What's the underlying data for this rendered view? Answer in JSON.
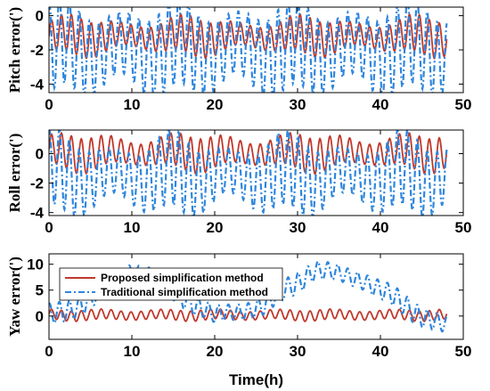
{
  "chart_data": [
    {
      "type": "line",
      "ylabel": "Pitch error(')",
      "xlim": [
        0,
        50
      ],
      "ylim": [
        -4.5,
        0.5
      ],
      "yticks": [
        0,
        -2,
        -4
      ],
      "xticks": [
        0,
        10,
        20,
        30,
        40,
        50
      ],
      "grid": false,
      "t_end": 48,
      "series": [
        {
          "key": "proposed",
          "color": "#c0392b",
          "style": "solid",
          "center": -1.2,
          "amp": [
            0.6,
            1.1
          ],
          "cycles": 40
        },
        {
          "key": "traditional",
          "color": "#2e86de",
          "style": "dashdot",
          "center": -2.0,
          "amp": [
            1.8,
            2.6
          ],
          "cycles": 40
        }
      ]
    },
    {
      "type": "line",
      "ylabel": "Roll error(')",
      "xlim": [
        0,
        50
      ],
      "ylim": [
        -4.2,
        1.6
      ],
      "yticks": [
        0,
        -2,
        -4
      ],
      "xticks": [
        0,
        10,
        20,
        30,
        40,
        50
      ],
      "grid": false,
      "t_end": 48,
      "series": [
        {
          "key": "proposed",
          "color": "#c0392b",
          "style": "solid",
          "center": 0.1,
          "amp": [
            0.7,
            1.2
          ],
          "cycles": 40
        },
        {
          "key": "traditional",
          "color": "#2e86de",
          "style": "dashdot",
          "center": -1.5,
          "amp": [
            1.5,
            2.6
          ],
          "cycles": 40
        }
      ]
    },
    {
      "type": "line",
      "ylabel": "Yaw error(')",
      "xlabel": "Time(h)",
      "xlim": [
        0,
        50
      ],
      "ylim": [
        -4.5,
        12
      ],
      "yticks": [
        0,
        5,
        10
      ],
      "xticks": [
        0,
        10,
        20,
        30,
        40,
        50
      ],
      "grid": false,
      "t_end": 48,
      "legend": {
        "placement": "top-left",
        "entries": [
          {
            "label": "Proposed simplification method",
            "color": "#c0392b",
            "style": "solid"
          },
          {
            "label": "Traditional simplification method",
            "color": "#2e86de",
            "style": "dashdot"
          }
        ]
      },
      "series": [
        {
          "key": "proposed",
          "color": "#c0392b",
          "style": "solid",
          "center": 0.2,
          "amp": [
            0.8,
            1.0
          ],
          "cycles": 40
        },
        {
          "key": "traditional",
          "color": "#2e86de",
          "style": "dashdot",
          "center": 3.5,
          "amp": [
            1.5,
            2.0
          ],
          "cycles": 40,
          "drift": [
            [
              0,
              0
            ],
            [
              5,
              3
            ],
            [
              10,
              9
            ],
            [
              14,
              6
            ],
            [
              20,
              0
            ],
            [
              26,
              2
            ],
            [
              32,
              9
            ],
            [
              38,
              7
            ],
            [
              44,
              1
            ],
            [
              48,
              -2
            ]
          ]
        }
      ]
    }
  ]
}
